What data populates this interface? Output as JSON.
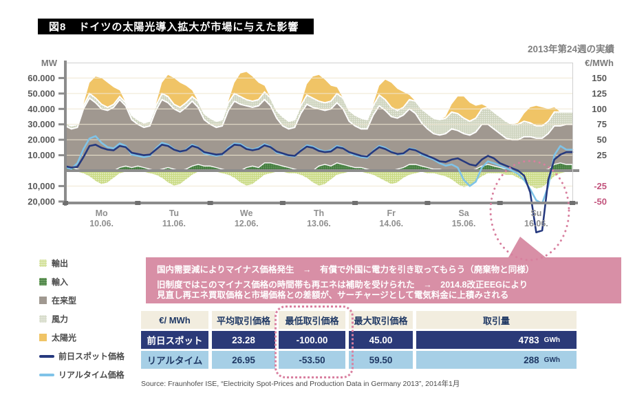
{
  "header": {
    "figure_label": "図8",
    "title": "ドイツの太陽光導入拡大が市場に与えた影響",
    "subtitle": "2013年第24週の実績"
  },
  "legend": {
    "items": [
      {
        "label": "輸出",
        "color": "#C9DA82"
      },
      {
        "label": "輸入",
        "color": "#41793F"
      },
      {
        "label": "在来型",
        "color": "#A09890"
      },
      {
        "label": "風力",
        "color": "#CDD3BD"
      },
      {
        "label": "太陽光",
        "color": "#F0C466"
      },
      {
        "label": "前日スポット価格",
        "color": "#26397E"
      },
      {
        "label": "リアルタイム価格",
        "color": "#7FC3E8"
      }
    ]
  },
  "note": {
    "line1": "国内需要減によりマイナス価格発生　→　有償で外国に電力を引き取ってもらう（廃棄物と同様）",
    "line2": "旧制度ではこのマイナス価格の時間帯も再エネは補助を受けられた　→　2014.8改正EEGにより",
    "line3": "見直し再エネ買取価格と市場価格との差額が、サーチャージとして電気料金に上積みされる"
  },
  "table": {
    "header": [
      "€/ MWh",
      "平均取引価格",
      "最低取引価格",
      "最大取引価格",
      "取引量"
    ],
    "rows": [
      {
        "label": "前日スポット",
        "avg": "23.28",
        "min": "-100.00",
        "max": "45.00",
        "volume": "4783",
        "unit": "GWh"
      },
      {
        "label": "リアルタイム",
        "avg": "26.95",
        "min": "-53.50",
        "max": "59.50",
        "volume": "288",
        "unit": "GWh"
      }
    ]
  },
  "source": "Source: Fraunhofer ISE, “Electricity Spot-Prices and Production Data in Germany 2013”, 2014年1月",
  "chart_data": {
    "type": "area",
    "subtype": "stacked-area-with-price-lines",
    "title": "ドイツの太陽光導入拡大が市場に与えた影響",
    "subtitle": "2013年第24週の実績",
    "x_description": "2-hour steps over one week, Monday 10.06.2013 to Sunday 16.06.2013",
    "days": [
      {
        "name": "Mo",
        "date": "10.06."
      },
      {
        "name": "Tu",
        "date": "11.06."
      },
      {
        "name": "We",
        "date": "12.06."
      },
      {
        "name": "Th",
        "date": "13.06."
      },
      {
        "name": "Fr",
        "date": "14.06."
      },
      {
        "name": "Sa",
        "date": "15.06."
      },
      {
        "name": "Su",
        "date": "16.06."
      }
    ],
    "left_axis": {
      "label": "MW",
      "value_unit": "thousand MW",
      "ticks": [
        {
          "v": 60,
          "label": "60.000"
        },
        {
          "v": 50,
          "label": "50.000"
        },
        {
          "v": 40,
          "label": "40.000"
        },
        {
          "v": 30,
          "label": "30.000"
        },
        {
          "v": 20,
          "label": "20.000"
        },
        {
          "v": 10,
          "label": "10.000"
        },
        {
          "v": -10,
          "label": "-10,000"
        },
        {
          "v": -20,
          "label": "-20,000"
        }
      ],
      "grid_values": [
        60,
        50,
        40,
        30,
        20,
        10,
        -10
      ],
      "range": [
        -21,
        70
      ]
    },
    "right_axis": {
      "label": "€/MWh",
      "ticks": [
        {
          "v": 150,
          "label": "150"
        },
        {
          "v": 125,
          "label": "125"
        },
        {
          "v": 100,
          "label": "100"
        },
        {
          "v": 75,
          "label": "75"
        },
        {
          "v": 50,
          "label": "50"
        },
        {
          "v": 25,
          "label": "25"
        },
        {
          "v": -25,
          "label": "-25"
        },
        {
          "v": -50,
          "label": "-50"
        }
      ],
      "negative_color": "#C2537C"
    },
    "area_series": [
      {
        "name": "輸入",
        "key": "import",
        "color": "#41793F",
        "values": [
          3,
          2,
          1,
          0,
          0,
          0,
          0,
          0,
          0,
          2,
          3,
          2,
          3,
          2,
          1,
          0,
          1,
          2,
          1,
          0,
          1,
          3,
          4,
          3,
          3,
          2,
          1,
          0,
          0,
          0,
          2,
          3,
          2,
          5,
          5,
          4,
          3,
          2,
          1,
          0,
          0,
          0,
          3,
          4,
          3,
          5,
          4,
          3,
          2,
          2,
          1,
          0,
          0,
          0,
          0,
          1,
          2,
          4,
          4,
          3,
          2,
          1,
          1,
          0,
          0,
          0,
          0,
          0,
          1,
          3,
          4,
          3,
          2,
          1,
          1,
          0,
          0,
          0,
          0,
          0,
          1,
          4,
          5,
          4
        ]
      },
      {
        "name": "在来型",
        "key": "conventional",
        "color": "#A09890",
        "values": [
          26,
          25,
          27,
          40,
          47,
          44,
          40,
          39,
          41,
          44,
          39,
          31,
          27,
          26,
          28,
          39,
          45,
          42,
          39,
          38,
          40,
          42,
          37,
          30,
          27,
          26,
          28,
          39,
          45,
          43,
          40,
          38,
          40,
          41,
          37,
          30,
          26,
          25,
          27,
          37,
          43,
          41,
          37,
          35,
          37,
          39,
          36,
          29,
          27,
          25,
          26,
          36,
          42,
          39,
          35,
          33,
          34,
          36,
          33,
          28,
          25,
          23,
          22,
          24,
          27,
          26,
          24,
          23,
          24,
          27,
          26,
          24,
          22,
          20,
          19,
          20,
          22,
          22,
          21,
          21,
          23,
          25,
          24,
          26
        ]
      },
      {
        "name": "風力",
        "key": "wind",
        "color": "#CDD3BD",
        "values": [
          2,
          2,
          2,
          2,
          3,
          3,
          3,
          2,
          2,
          2,
          2,
          3,
          3,
          3,
          3,
          3,
          4,
          4,
          3,
          3,
          3,
          3,
          4,
          4,
          4,
          4,
          4,
          5,
          5,
          5,
          4,
          4,
          4,
          5,
          5,
          5,
          6,
          5,
          5,
          5,
          6,
          6,
          5,
          5,
          5,
          6,
          7,
          7,
          7,
          7,
          6,
          6,
          7,
          7,
          6,
          5,
          5,
          6,
          8,
          9,
          10,
          10,
          10,
          10,
          11,
          11,
          10,
          9,
          9,
          10,
          11,
          11,
          11,
          11,
          10,
          10,
          10,
          9,
          8,
          8,
          8,
          9,
          9,
          8
        ]
      },
      {
        "name": "太陽光",
        "key": "solar",
        "color": "#F0C466",
        "values": [
          0,
          0,
          0,
          1,
          7,
          14,
          17,
          16,
          11,
          4,
          0,
          0,
          0,
          0,
          0,
          1,
          7,
          14,
          17,
          16,
          11,
          4,
          0,
          0,
          0,
          0,
          0,
          1,
          7,
          15,
          18,
          16,
          11,
          4,
          0,
          0,
          0,
          0,
          0,
          1,
          7,
          14,
          17,
          15,
          10,
          4,
          0,
          0,
          0,
          0,
          0,
          1,
          6,
          13,
          16,
          14,
          10,
          3,
          0,
          0,
          0,
          0,
          0,
          1,
          5,
          11,
          14,
          12,
          8,
          3,
          0,
          0,
          0,
          0,
          0,
          1,
          5,
          10,
          13,
          12,
          8,
          3,
          0,
          0
        ]
      },
      {
        "name": "輸出",
        "key": "export",
        "color": "#C9DA82",
        "values": [
          -1,
          -1,
          -1,
          -2,
          -4,
          -7,
          -9,
          -8,
          -5,
          -2,
          -1,
          -1,
          -1,
          -1,
          -2,
          -3,
          -5,
          -8,
          -10,
          -9,
          -6,
          -3,
          -1,
          -1,
          -1,
          -1,
          -2,
          -3,
          -5,
          -8,
          -10,
          -9,
          -6,
          -3,
          -2,
          -1,
          -1,
          -2,
          -2,
          -3,
          -5,
          -8,
          -10,
          -9,
          -6,
          -3,
          -2,
          -1,
          -1,
          -1,
          -2,
          -3,
          -5,
          -7,
          -9,
          -8,
          -5,
          -3,
          -2,
          -1,
          -2,
          -2,
          -3,
          -4,
          -6,
          -9,
          -11,
          -10,
          -7,
          -4,
          -2,
          -2,
          -2,
          -3,
          -3,
          -5,
          -7,
          -10,
          -12,
          -11,
          -8,
          -4,
          -2,
          -1
        ]
      }
    ],
    "line_series": [
      {
        "name": "前日スポット価格",
        "unit": "€/MWh",
        "color": "#26397E",
        "values": [
          7,
          5,
          6,
          22,
          40,
          42,
          37,
          34,
          33,
          40,
          38,
          29,
          27,
          25,
          26,
          34,
          42,
          40,
          34,
          31,
          33,
          40,
          37,
          30,
          28,
          26,
          27,
          35,
          42,
          41,
          35,
          33,
          35,
          41,
          38,
          31,
          28,
          25,
          24,
          32,
          39,
          37,
          32,
          30,
          31,
          38,
          36,
          30,
          27,
          24,
          23,
          31,
          38,
          35,
          30,
          27,
          28,
          35,
          33,
          28,
          24,
          20,
          15,
          14,
          18,
          20,
          15,
          10,
          8,
          18,
          24,
          20,
          12,
          8,
          4,
          0,
          -8,
          -35,
          -100,
          -97,
          -15,
          18,
          26,
          30
        ]
      },
      {
        "name": "リアルタイム価格",
        "unit": "€/MWh",
        "color": "#7FC3E8",
        "values": [
          5,
          3,
          12,
          35,
          52,
          56,
          45,
          38,
          36,
          44,
          40,
          26,
          24,
          22,
          24,
          36,
          45,
          42,
          35,
          30,
          34,
          42,
          38,
          28,
          26,
          24,
          26,
          37,
          44,
          43,
          37,
          34,
          37,
          43,
          39,
          29,
          27,
          24,
          23,
          33,
          41,
          39,
          34,
          31,
          33,
          40,
          37,
          29,
          25,
          22,
          21,
          32,
          40,
          37,
          31,
          26,
          27,
          36,
          34,
          26,
          22,
          18,
          12,
          8,
          10,
          5,
          -15,
          -25,
          -18,
          5,
          15,
          12,
          8,
          4,
          0,
          -5,
          -15,
          -30,
          -48,
          -53,
          -25,
          25,
          40,
          34
        ]
      }
    ],
    "annotation": {
      "highlight": "Sunday negative-price dip circled with dotted pink ellipse",
      "ellipse_color": "#D87F9E"
    }
  }
}
